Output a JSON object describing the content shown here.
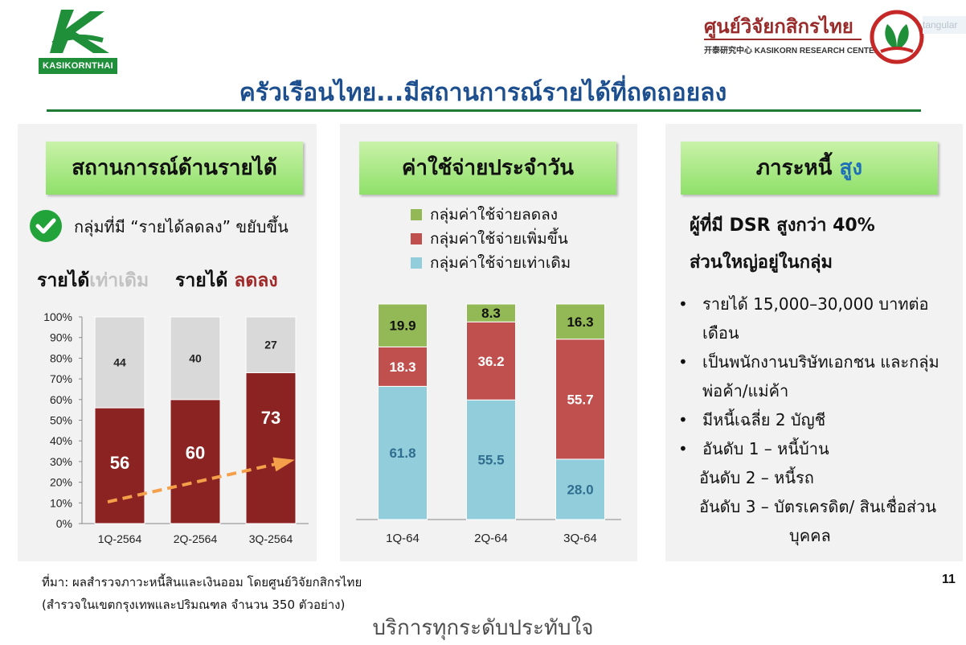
{
  "header": {
    "logo_left_text": "KASIKORNTHAI",
    "logo_right_thai": "ศูนย์วิจัยกสิกรไทย",
    "logo_right_en": "开泰研究中心 KASIKORN RESEARCH CENTER",
    "stray_text": "tangular",
    "page_title": "ครัวเรือนไทย...มีสถานการณ์รายได้ที่ถดถอยลง"
  },
  "income_panel": {
    "header": "สถานการณ์ด้านรายได้",
    "note": "กลุ่มที่มี “รายได้ลดลง” ขยับขึ้น",
    "label_same_prefix": "รายได้",
    "label_same_highlight": "เท่าเดิม",
    "label_down_prefix": "รายได้",
    "label_down_highlight": "ลดลง"
  },
  "expense_panel": {
    "header": "ค่าใช้จ่ายประจำวัน"
  },
  "debt_panel": {
    "header_prefix": "ภาระหนี้",
    "header_highlight": "สูง",
    "lead_line1": "ผู้ที่มี DSR สูงกว่า 40%",
    "lead_line2": "ส่วนใหญ่อยู่ในกลุ่ม",
    "bullets": [
      {
        "line1": "รายได้ 15,000–30,000 บาทต่อ",
        "line2": "เดือน"
      },
      {
        "line1": "เป็นพนักงานบริษัทเอกชน และกลุ่ม",
        "line2": "พ่อค้า/แม่ค้า"
      },
      {
        "line1": "มีหนี้เฉลี่ย 2 บัญชี"
      },
      {
        "line1": "อันดับ 1 – หนี้บ้าน"
      }
    ],
    "extra_lines": [
      "อันดับ 2 – หนี้รถ",
      "อันดับ 3 – บัตรเครดิต/ สินเชื่อส่วน",
      "บุคคล"
    ]
  },
  "footer": {
    "source_line1": "ที่มา: ผลสำรวจภาวะหนี้สินและเงินออม โดยศูนย์วิจัยกสิกรไทย",
    "source_line2": "(สำรวจในเขตกรุงเทพและปริมณฑล จำนวน 350 ตัวอย่าง)",
    "page_number": "11",
    "tagline": "บริการทุกระดับประทับใจ"
  },
  "colors": {
    "brand_green": "#1f8f3a",
    "title_blue": "#1d4f8f",
    "income_down": "#8b2323",
    "income_same": "#d9d9d9",
    "expense_down": "#92b955",
    "expense_up": "#c0504d",
    "expense_same": "#92cddc",
    "trend_arrow": "#f4a04b"
  },
  "chart_data": [
    {
      "type": "bar",
      "stacked": true,
      "categories": [
        "1Q-2564",
        "2Q-2564",
        "3Q-2564"
      ],
      "series": [
        {
          "name": "",
          "values": [
            56,
            60,
            73
          ]
        },
        {
          "name": "",
          "values": [
            44,
            40,
            27
          ]
        }
      ],
      "yticks": [
        "0%",
        "10%",
        "20%",
        "30%",
        "40%",
        "50%",
        "60%",
        "70%",
        "80%",
        "90%",
        "100%"
      ],
      "ylim": [
        0,
        100
      ],
      "grid": false,
      "annotation": "trend arrow rising across income-decreased share"
    },
    {
      "type": "bar",
      "stacked": true,
      "categories": [
        "1Q-64",
        "2Q-64",
        "3Q-64"
      ],
      "series": [
        {
          "name": "กลุ่มค่าใช้จ่ายเท่าเดิม",
          "values": [
            61.8,
            55.5,
            28.0
          ]
        },
        {
          "name": "กลุ่มค่าใช้จ่ายเพิ่มขึ้น",
          "values": [
            18.3,
            36.2,
            55.7
          ]
        },
        {
          "name": "กลุ่มค่าใช้จ่ายลดลง",
          "values": [
            19.9,
            8.3,
            16.3
          ]
        }
      ],
      "legend_order": [
        "กลุ่มค่าใช้จ่ายลดลง",
        "กลุ่มค่าใช้จ่ายเพิ่มขึ้น",
        "กลุ่มค่าใช้จ่ายเท่าเดิม"
      ],
      "ylim": [
        0,
        100
      ],
      "grid": false,
      "legend": "top"
    }
  ]
}
